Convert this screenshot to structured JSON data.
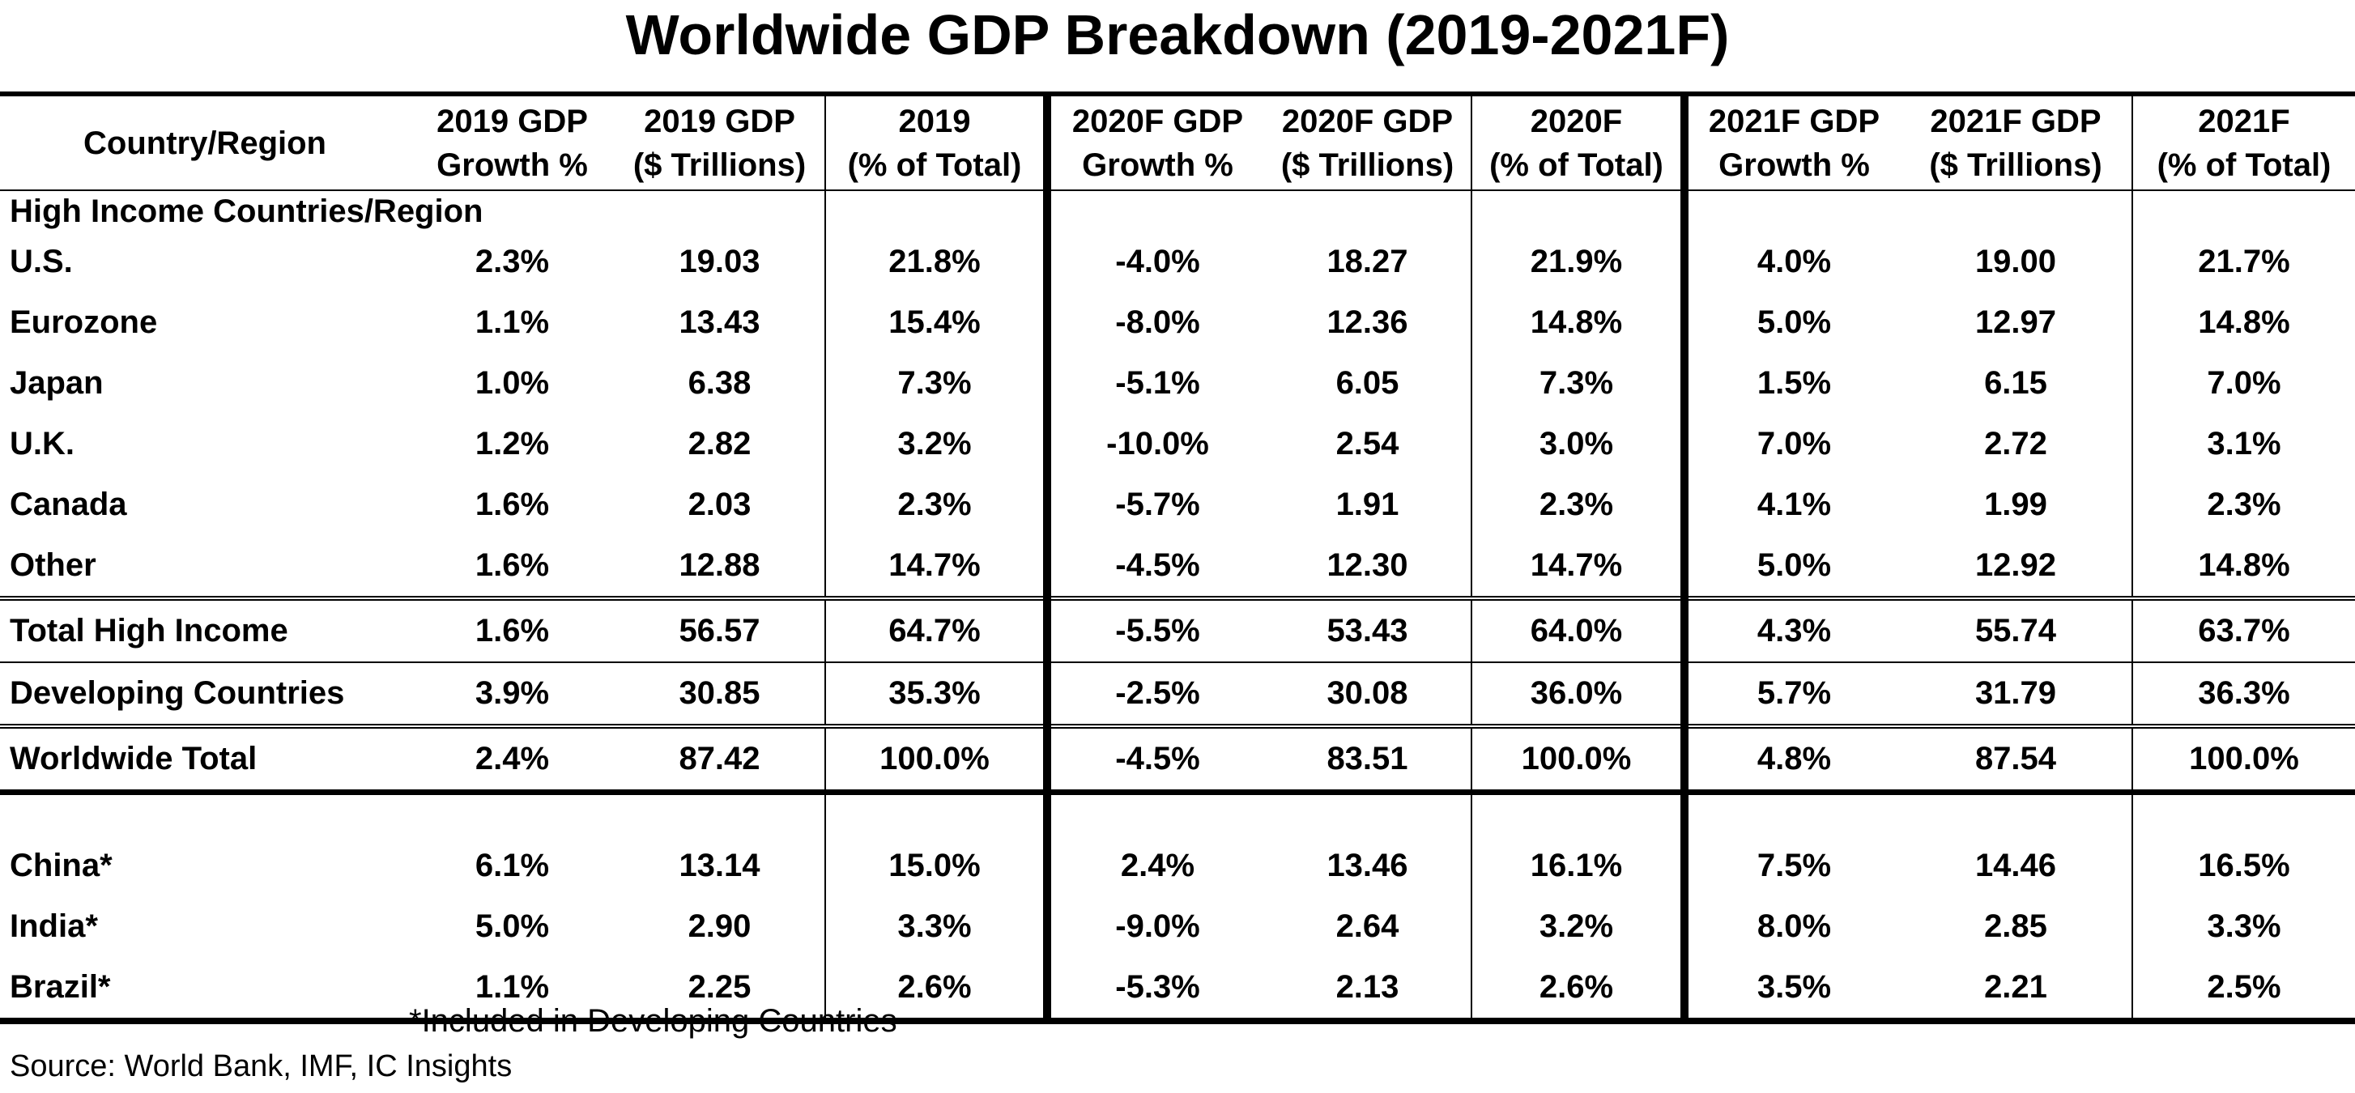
{
  "title": "Worldwide GDP Breakdown (2019-2021F)",
  "table": {
    "headers": [
      [
        "Country/Region"
      ],
      [
        "2019 GDP",
        "Growth %"
      ],
      [
        "2019 GDP",
        "($ Trillions)"
      ],
      [
        "2019",
        "(% of Total)"
      ],
      [
        "2020F GDP",
        "Growth %"
      ],
      [
        "2020F GDP",
        "($ Trillions)"
      ],
      [
        "2020F",
        "(% of Total)"
      ],
      [
        "2021F GDP",
        "Growth %"
      ],
      [
        "2021F GDP",
        "($ Trillions)"
      ],
      [
        "2021F",
        "(% of Total)"
      ]
    ],
    "section_label": "High Income Countries/Region",
    "rows": [
      [
        "U.S.",
        "2.3%",
        "19.03",
        "21.8%",
        "-4.0%",
        "18.27",
        "21.9%",
        "4.0%",
        "19.00",
        "21.7%"
      ],
      [
        "Eurozone",
        "1.1%",
        "13.43",
        "15.4%",
        "-8.0%",
        "12.36",
        "14.8%",
        "5.0%",
        "12.97",
        "14.8%"
      ],
      [
        "Japan",
        "1.0%",
        "6.38",
        "7.3%",
        "-5.1%",
        "6.05",
        "7.3%",
        "1.5%",
        "6.15",
        "7.0%"
      ],
      [
        "U.K.",
        "1.2%",
        "2.82",
        "3.2%",
        "-10.0%",
        "2.54",
        "3.0%",
        "7.0%",
        "2.72",
        "3.1%"
      ],
      [
        "Canada",
        "1.6%",
        "2.03",
        "2.3%",
        "-5.7%",
        "1.91",
        "2.3%",
        "4.1%",
        "1.99",
        "2.3%"
      ],
      [
        "Other",
        "1.6%",
        "12.88",
        "14.7%",
        "-4.5%",
        "12.30",
        "14.7%",
        "5.0%",
        "12.92",
        "14.8%"
      ],
      [
        "Total High Income",
        "1.6%",
        "56.57",
        "64.7%",
        "-5.5%",
        "53.43",
        "64.0%",
        "4.3%",
        "55.74",
        "63.7%"
      ],
      [
        "Developing Countries",
        "3.9%",
        "30.85",
        "35.3%",
        "-2.5%",
        "30.08",
        "36.0%",
        "5.7%",
        "31.79",
        "36.3%"
      ],
      [
        "Worldwide Total",
        "2.4%",
        "87.42",
        "100.0%",
        "-4.5%",
        "83.51",
        "100.0%",
        "4.8%",
        "87.54",
        "100.0%"
      ],
      [
        "China*",
        "6.1%",
        "13.14",
        "15.0%",
        "2.4%",
        "13.46",
        "16.1%",
        "7.5%",
        "14.46",
        "16.5%"
      ],
      [
        "India*",
        "5.0%",
        "2.90",
        "3.3%",
        "-9.0%",
        "2.64",
        "3.2%",
        "8.0%",
        "2.85",
        "3.3%"
      ],
      [
        "Brazil*",
        "1.1%",
        "2.25",
        "2.6%",
        "-5.3%",
        "2.13",
        "2.6%",
        "3.5%",
        "2.21",
        "2.5%"
      ]
    ]
  },
  "footnote": "*Included in Developing Countries",
  "source": "Source: World Bank, IMF, IC Insights"
}
